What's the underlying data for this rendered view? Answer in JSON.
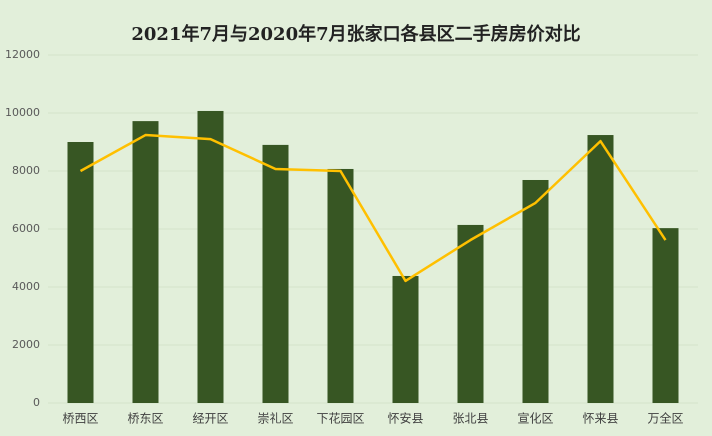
{
  "chart_data": {
    "type": "combo",
    "title": "2021年7月与2020年7月张家口各县区二手房房价对比",
    "categories": [
      "桥西区",
      "桥东区",
      "经开区",
      "崇礼区",
      "下花园区",
      "怀安县",
      "张北县",
      "宣化区",
      "怀来县",
      "万全区"
    ],
    "series": [
      {
        "type": "bar",
        "color": "#375623",
        "values": [
          9000,
          9720,
          10070,
          8900,
          8070,
          4380,
          6140,
          7690,
          9240,
          6030
        ]
      },
      {
        "type": "line",
        "color": "#ffc000",
        "values": [
          8000,
          9240,
          9100,
          8070,
          8000,
          4210,
          5620,
          6900,
          9030,
          5620
        ]
      }
    ],
    "ylim": [
      0,
      12000
    ],
    "yticks": [
      0,
      2000,
      4000,
      6000,
      8000,
      10000,
      12000
    ],
    "grid": true
  }
}
